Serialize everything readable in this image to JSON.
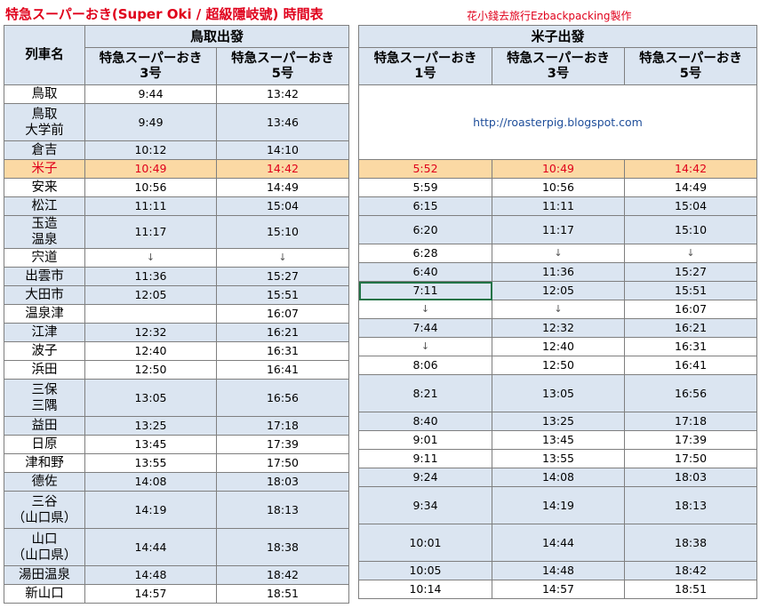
{
  "title": "特急スーパーおき(Super Oki / 超級隱岐號)  時間表",
  "credit": "花小錢去旅行Ezbackpacking製作",
  "url": "http://roasterpig.blogspot.com",
  "left": {
    "group": "鳥取出發",
    "station_header": "列車名",
    "trains": [
      "特急スーパーおき\n3号",
      "特急スーパーおき\n5号"
    ]
  },
  "right": {
    "group": "米子出發",
    "trains": [
      "特急スーパーおき\n1号",
      "特急スーパーおき\n3号",
      "特急スーパーおき\n5号"
    ]
  },
  "rows": [
    {
      "station": "鳥取",
      "left": [
        "9:44",
        "13:42"
      ],
      "right": null
    },
    {
      "station": "鳥取\n大学前",
      "left": [
        "9:49",
        "13:46"
      ],
      "right": null
    },
    {
      "station": "倉吉",
      "left": [
        "10:12",
        "14:10"
      ],
      "right": null
    },
    {
      "station": "米子",
      "left": [
        "10:49",
        "14:42"
      ],
      "right": [
        "5:52",
        "10:49",
        "14:42"
      ]
    },
    {
      "station": "安来",
      "left": [
        "10:56",
        "14:49"
      ],
      "right": [
        "5:59",
        "10:56",
        "14:49"
      ]
    },
    {
      "station": "松江",
      "left": [
        "11:11",
        "15:04"
      ],
      "right": [
        "6:15",
        "11:11",
        "15:04"
      ]
    },
    {
      "station": "玉造\n温泉",
      "left": [
        "11:17",
        "15:10"
      ],
      "right": [
        "6:20",
        "11:17",
        "15:10"
      ]
    },
    {
      "station": "宍道",
      "left": [
        "↓",
        "↓"
      ],
      "right": [
        "6:28",
        "↓",
        "↓"
      ]
    },
    {
      "station": "出雲市",
      "left": [
        "11:36",
        "15:27"
      ],
      "right": [
        "6:40",
        "11:36",
        "15:27"
      ]
    },
    {
      "station": "大田市",
      "left": [
        "12:05",
        "15:51"
      ],
      "right": [
        "7:11",
        "12:05",
        "15:51"
      ]
    },
    {
      "station": "温泉津",
      "left": [
        "",
        "16:07"
      ],
      "right": [
        "↓",
        "↓",
        "16:07"
      ]
    },
    {
      "station": "江津",
      "left": [
        "12:32",
        "16:21"
      ],
      "right": [
        "7:44",
        "12:32",
        "16:21"
      ]
    },
    {
      "station": "波子",
      "left": [
        "12:40",
        "16:31"
      ],
      "right": [
        "↓",
        "12:40",
        "16:31"
      ]
    },
    {
      "station": "浜田",
      "left": [
        "12:50",
        "16:41"
      ],
      "right": [
        "8:06",
        "12:50",
        "16:41"
      ]
    },
    {
      "station": "三保\n三隅",
      "left": [
        "13:05",
        "16:56"
      ],
      "right": [
        "8:21",
        "13:05",
        "16:56"
      ]
    },
    {
      "station": "益田",
      "left": [
        "13:25",
        "17:18"
      ],
      "right": [
        "8:40",
        "13:25",
        "17:18"
      ]
    },
    {
      "station": "日原",
      "left": [
        "13:45",
        "17:39"
      ],
      "right": [
        "9:01",
        "13:45",
        "17:39"
      ]
    },
    {
      "station": "津和野",
      "left": [
        "13:55",
        "17:50"
      ],
      "right": [
        "9:11",
        "13:55",
        "17:50"
      ]
    },
    {
      "station": "德佐",
      "left": [
        "14:08",
        "18:03"
      ],
      "right": [
        "9:24",
        "14:08",
        "18:03"
      ]
    },
    {
      "station": "三谷\n（山口県）",
      "left": [
        "14:19",
        "18:13"
      ],
      "right": [
        "9:34",
        "14:19",
        "18:13"
      ]
    },
    {
      "station": "山口\n（山口県）",
      "left": [
        "14:44",
        "18:38"
      ],
      "right": [
        "10:01",
        "14:44",
        "18:38"
      ]
    },
    {
      "station": "湯田温泉",
      "left": [
        "14:48",
        "18:42"
      ],
      "right": [
        "10:05",
        "14:48",
        "18:42"
      ]
    },
    {
      "station": "新山口",
      "left": [
        "14:57",
        "18:51"
      ],
      "right": [
        "10:14",
        "14:57",
        "18:51"
      ]
    }
  ]
}
